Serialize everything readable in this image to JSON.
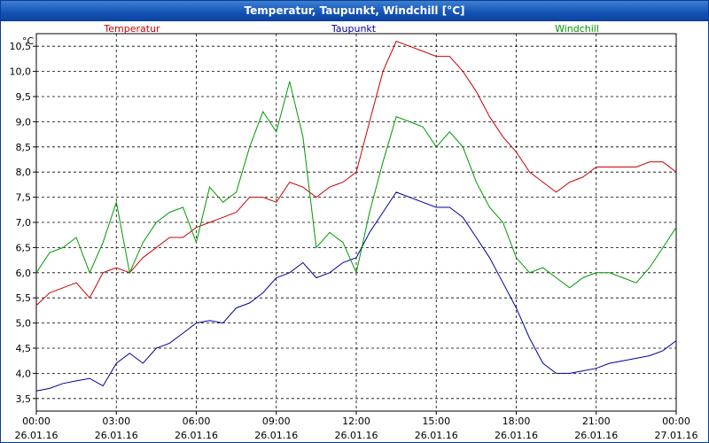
{
  "window": {
    "title": "Temperatur, Taupunkt, Windchill [°C]"
  },
  "chart_data": {
    "type": "line",
    "title": "Temperatur, Taupunkt, Windchill [°C]",
    "ylabel": "°C",
    "ylim": [
      3.25,
      10.75
    ],
    "yticks": [
      "3,5",
      "4,0",
      "4,5",
      "5,0",
      "5,5",
      "6,0",
      "6,5",
      "7,0",
      "7,5",
      "8,0",
      "8,5",
      "9,0",
      "9,5",
      "10,0",
      "10,5"
    ],
    "xticks": [
      {
        "time": "00:00",
        "date": "26.01.16"
      },
      {
        "time": "03:00",
        "date": "26.01.16"
      },
      {
        "time": "06:00",
        "date": "26.01.16"
      },
      {
        "time": "09:00",
        "date": "26.01.16"
      },
      {
        "time": "12:00",
        "date": "26.01.16"
      },
      {
        "time": "15:00",
        "date": "26.01.16"
      },
      {
        "time": "18:00",
        "date": "26.01.16"
      },
      {
        "time": "21:00",
        "date": "26.01.16"
      },
      {
        "time": "00:00",
        "date": "27.01.16"
      }
    ],
    "x_hours": [
      0,
      0.5,
      1,
      1.5,
      2,
      2.5,
      3,
      3.5,
      4,
      4.5,
      5,
      5.5,
      6,
      6.5,
      7,
      7.5,
      8,
      8.5,
      9,
      9.5,
      10,
      10.5,
      11,
      11.5,
      12,
      12.5,
      13,
      13.5,
      14,
      14.5,
      15,
      15.5,
      16,
      16.5,
      17,
      17.5,
      18,
      18.5,
      19,
      19.5,
      20,
      20.5,
      21,
      21.5,
      22,
      22.5,
      23,
      23.5,
      24
    ],
    "grid": true,
    "legend": "top",
    "series": [
      {
        "name": "Temperatur",
        "color": "#cc0000",
        "values": [
          5.35,
          5.6,
          5.7,
          5.8,
          5.5,
          6.0,
          6.1,
          6.0,
          6.3,
          6.5,
          6.7,
          6.7,
          6.9,
          7.0,
          7.1,
          7.2,
          7.5,
          7.5,
          7.4,
          7.8,
          7.7,
          7.5,
          7.7,
          7.8,
          8.0,
          9.0,
          10.0,
          10.6,
          10.5,
          10.4,
          10.3,
          10.3,
          10.0,
          9.6,
          9.1,
          8.7,
          8.4,
          8.0,
          7.8,
          7.6,
          7.8,
          7.9,
          8.1,
          8.1,
          8.1,
          8.1,
          8.2,
          8.2,
          8.0
        ]
      },
      {
        "name": "Taupunkt",
        "color": "#000099",
        "values": [
          3.65,
          3.7,
          3.8,
          3.85,
          3.9,
          3.75,
          4.2,
          4.4,
          4.2,
          4.5,
          4.6,
          4.8,
          5.0,
          5.05,
          5.0,
          5.3,
          5.4,
          5.6,
          5.9,
          6.0,
          6.2,
          5.9,
          6.0,
          6.2,
          6.3,
          6.8,
          7.2,
          7.6,
          7.5,
          7.4,
          7.3,
          7.3,
          7.1,
          6.7,
          6.3,
          5.8,
          5.3,
          4.7,
          4.2,
          4.0,
          4.0,
          4.05,
          4.1,
          4.2,
          4.25,
          4.3,
          4.35,
          4.45,
          4.65
        ]
      },
      {
        "name": "Windchill",
        "color": "#009900",
        "values": [
          6.0,
          6.4,
          6.5,
          6.7,
          6.0,
          6.6,
          7.4,
          6.0,
          6.6,
          7.0,
          7.2,
          7.3,
          6.6,
          7.7,
          7.4,
          7.6,
          8.5,
          9.2,
          8.8,
          9.8,
          8.7,
          6.5,
          6.8,
          6.6,
          6.0,
          7.2,
          8.2,
          9.1,
          9.0,
          8.9,
          8.5,
          8.8,
          8.5,
          7.8,
          7.3,
          7.0,
          6.3,
          6.0,
          6.1,
          5.9,
          5.7,
          5.9,
          6.0,
          6.0,
          5.9,
          5.8,
          6.1,
          6.5,
          6.9
        ]
      }
    ]
  }
}
